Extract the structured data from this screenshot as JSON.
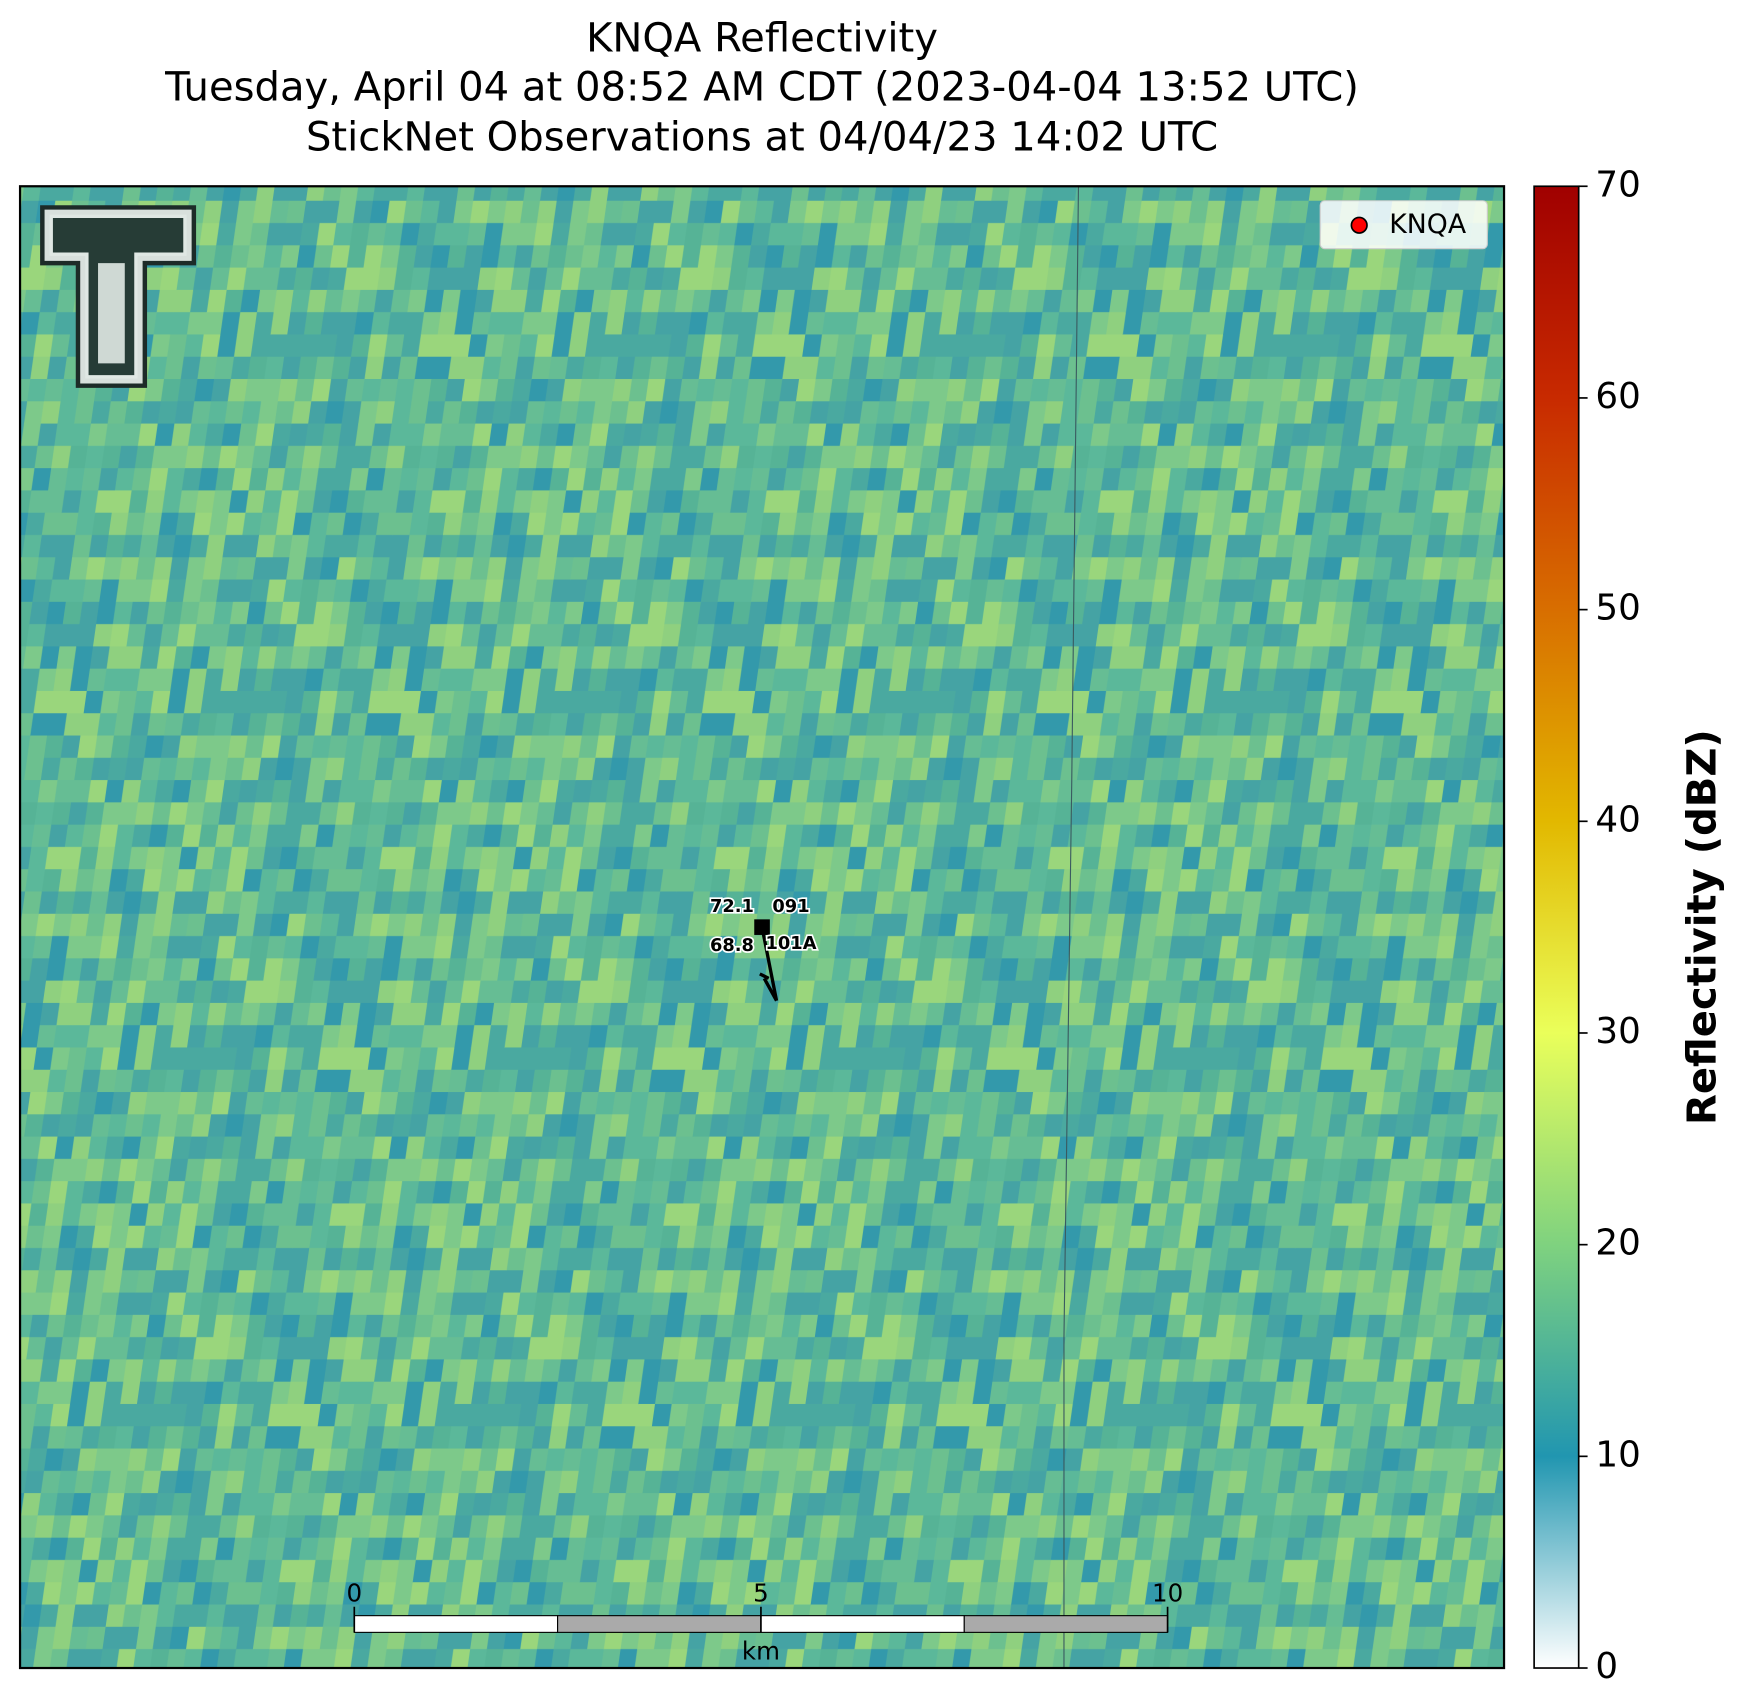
{
  "title_lines": [
    "KNQA Reflectivity",
    "Tuesday, April 04 at 08:52 AM CDT (2023-04-04 13:52 UTC)",
    "StickNet Observations at 04/04/23 14:02 UTC"
  ],
  "legend": {
    "entries": [
      {
        "name": "KNQA",
        "color": "#ff0000"
      }
    ]
  },
  "observation": {
    "temperature": 72.1,
    "dewpoint": 68.8,
    "stations": [
      "091",
      "101A"
    ]
  },
  "scale_bar": {
    "ticks": [
      0,
      5,
      10
    ],
    "xlim": [
      0,
      10
    ],
    "unit": "km"
  },
  "colorbar": {
    "label": "Reflectivity (dBZ)",
    "ylim": [
      0,
      70
    ],
    "yticks": [
      0,
      10,
      20,
      30,
      40,
      50,
      60,
      70
    ],
    "colors": [
      "#ffffff",
      "#2196b0",
      "#7fd27f",
      "#eaff5a",
      "#e2b800",
      "#d86e00",
      "#c82a00",
      "#a00000"
    ]
  }
}
